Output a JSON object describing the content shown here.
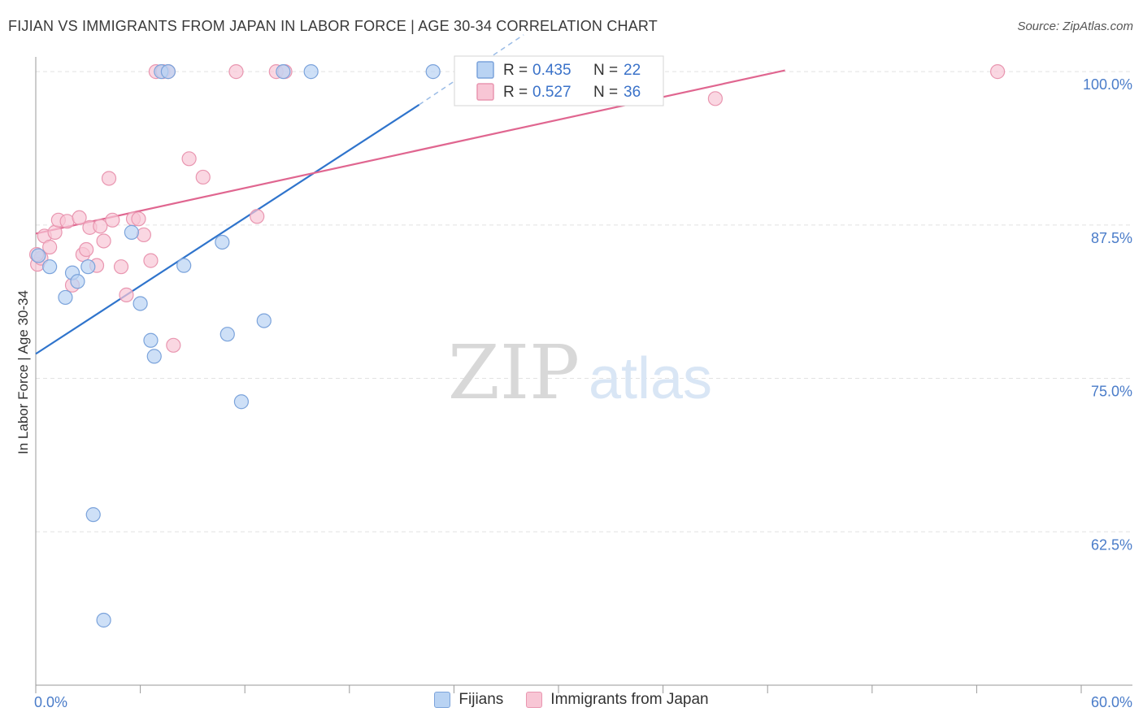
{
  "title": "FIJIAN VS IMMIGRANTS FROM JAPAN IN LABOR FORCE | AGE 30-34 CORRELATION CHART",
  "source": "Source: ZipAtlas.com",
  "watermark": {
    "zip": "ZIP",
    "atlas": "atlas"
  },
  "colors": {
    "blue_fill": "#b9d3f3",
    "blue_stroke": "#7ba3db",
    "blue_line": "#2f74cc",
    "pink_fill": "#f8c6d5",
    "pink_stroke": "#e996b0",
    "pink_line": "#e06690",
    "axis_label": "#4a7cc9",
    "grid": "#e2e2e2"
  },
  "legend": {
    "r_label": "R =",
    "n_label": "N =",
    "rows": [
      {
        "series": "Fijians",
        "r": "0.435",
        "n": "22"
      },
      {
        "series": "Immigrants from Japan",
        "r": "0.527",
        "n": "36"
      }
    ]
  },
  "bottom_legend": [
    "Fijians",
    "Immigrants from Japan"
  ],
  "chart_data": {
    "type": "scatter",
    "title": "FIJIAN VS IMMIGRANTS FROM JAPAN IN LABOR FORCE | AGE 30-34 CORRELATION CHART",
    "xlabel": "",
    "ylabel": "In Labor Force | Age 30-34",
    "xlim": [
      0,
      60
    ],
    "ylim": [
      50,
      101.2
    ],
    "x_tick_labels": [
      {
        "value": 0,
        "label": "0.0%"
      },
      {
        "value": 60,
        "label": "60.0%"
      }
    ],
    "y_tick_labels": [
      {
        "value": 100,
        "label": "100.0%"
      },
      {
        "value": 87.5,
        "label": "87.5%"
      },
      {
        "value": 75,
        "label": "75.0%"
      },
      {
        "value": 62.5,
        "label": "62.5%"
      }
    ],
    "series": [
      {
        "name": "Fijians",
        "points": [
          {
            "x": 0.15,
            "y": 85.0
          },
          {
            "x": 0.8,
            "y": 84.1
          },
          {
            "x": 1.7,
            "y": 81.6
          },
          {
            "x": 2.1,
            "y": 83.6
          },
          {
            "x": 2.4,
            "y": 82.9
          },
          {
            "x": 3.0,
            "y": 84.1
          },
          {
            "x": 3.3,
            "y": 63.9
          },
          {
            "x": 3.9,
            "y": 55.3
          },
          {
            "x": 5.5,
            "y": 86.9
          },
          {
            "x": 6.0,
            "y": 81.1
          },
          {
            "x": 6.6,
            "y": 78.1
          },
          {
            "x": 6.8,
            "y": 76.8
          },
          {
            "x": 7.2,
            "y": 100.0
          },
          {
            "x": 7.6,
            "y": 100.0
          },
          {
            "x": 8.5,
            "y": 84.2
          },
          {
            "x": 10.7,
            "y": 86.1
          },
          {
            "x": 11.0,
            "y": 78.6
          },
          {
            "x": 11.8,
            "y": 73.1
          },
          {
            "x": 13.1,
            "y": 79.7
          },
          {
            "x": 14.2,
            "y": 100.0
          },
          {
            "x": 15.8,
            "y": 100.0
          },
          {
            "x": 22.8,
            "y": 100.0
          }
        ],
        "trend": {
          "x": [
            0,
            22.0
          ],
          "y": [
            77.0,
            97.3
          ],
          "dashed_extension": {
            "x": [
              22.0,
              28.0
            ],
            "y": [
              97.3,
              103.0
            ]
          }
        }
      },
      {
        "name": "Immigrants from Japan",
        "points": [
          {
            "x": 0.1,
            "y": 84.3
          },
          {
            "x": 0.3,
            "y": 84.8
          },
          {
            "x": 0.5,
            "y": 86.6
          },
          {
            "x": 0.8,
            "y": 85.7
          },
          {
            "x": 1.1,
            "y": 86.9
          },
          {
            "x": 1.3,
            "y": 87.9
          },
          {
            "x": 1.8,
            "y": 87.8
          },
          {
            "x": 2.1,
            "y": 82.6
          },
          {
            "x": 2.5,
            "y": 88.1
          },
          {
            "x": 2.7,
            "y": 85.1
          },
          {
            "x": 2.9,
            "y": 85.5
          },
          {
            "x": 3.1,
            "y": 87.3
          },
          {
            "x": 3.5,
            "y": 84.2
          },
          {
            "x": 3.7,
            "y": 87.4
          },
          {
            "x": 3.9,
            "y": 86.2
          },
          {
            "x": 4.2,
            "y": 91.3
          },
          {
            "x": 4.4,
            "y": 87.9
          },
          {
            "x": 4.9,
            "y": 84.1
          },
          {
            "x": 5.2,
            "y": 81.8
          },
          {
            "x": 5.6,
            "y": 88.0
          },
          {
            "x": 5.9,
            "y": 88.0
          },
          {
            "x": 6.2,
            "y": 86.7
          },
          {
            "x": 6.6,
            "y": 84.6
          },
          {
            "x": 6.9,
            "y": 100.0
          },
          {
            "x": 7.3,
            "y": 100.0
          },
          {
            "x": 7.6,
            "y": 100.0
          },
          {
            "x": 7.9,
            "y": 77.7
          },
          {
            "x": 8.8,
            "y": 92.9
          },
          {
            "x": 9.6,
            "y": 91.4
          },
          {
            "x": 11.5,
            "y": 100.0
          },
          {
            "x": 12.7,
            "y": 88.2
          },
          {
            "x": 13.8,
            "y": 100.0
          },
          {
            "x": 14.3,
            "y": 100.0
          },
          {
            "x": 39.0,
            "y": 97.8
          },
          {
            "x": 55.2,
            "y": 100.0
          },
          {
            "x": 0.05,
            "y": 85.1
          }
        ],
        "trend": {
          "x": [
            0,
            43.0
          ],
          "y": [
            86.8,
            100.1
          ]
        }
      }
    ],
    "legend_position": "top-center",
    "grid": true
  }
}
